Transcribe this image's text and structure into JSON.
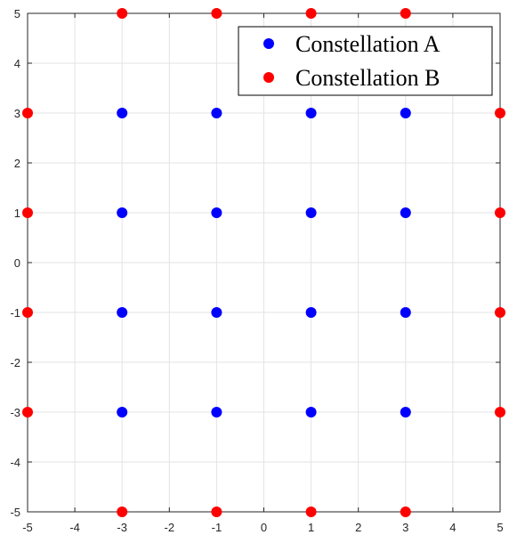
{
  "chart_data": {
    "type": "scatter",
    "title": "",
    "xlabel": "",
    "ylabel": "",
    "xlim": [
      -5,
      5
    ],
    "ylim": [
      -5,
      5
    ],
    "xticks": [
      -5,
      -4,
      -3,
      -2,
      -1,
      0,
      1,
      2,
      3,
      4,
      5
    ],
    "yticks": [
      -5,
      -4,
      -3,
      -2,
      -1,
      0,
      1,
      2,
      3,
      4,
      5
    ],
    "grid": true,
    "legend_position": "top-right",
    "series": [
      {
        "name": "Constellation A",
        "color": "#0000ff",
        "marker": "circle",
        "points": [
          [
            -3,
            3
          ],
          [
            -1,
            3
          ],
          [
            1,
            3
          ],
          [
            3,
            3
          ],
          [
            -3,
            1
          ],
          [
            -1,
            1
          ],
          [
            1,
            1
          ],
          [
            3,
            1
          ],
          [
            -3,
            -1
          ],
          [
            -1,
            -1
          ],
          [
            1,
            -1
          ],
          [
            3,
            -1
          ],
          [
            -3,
            -3
          ],
          [
            -1,
            -3
          ],
          [
            1,
            -3
          ],
          [
            3,
            -3
          ]
        ]
      },
      {
        "name": "Constellation B",
        "color": "#ff0000",
        "marker": "circle",
        "points": [
          [
            -3,
            5
          ],
          [
            -1,
            5
          ],
          [
            1,
            5
          ],
          [
            3,
            5
          ],
          [
            -5,
            3
          ],
          [
            5,
            3
          ],
          [
            -5,
            1
          ],
          [
            5,
            1
          ],
          [
            -5,
            -1
          ],
          [
            5,
            -1
          ],
          [
            -5,
            -3
          ],
          [
            5,
            -3
          ],
          [
            -3,
            -5
          ],
          [
            -1,
            -5
          ],
          [
            1,
            -5
          ],
          [
            3,
            -5
          ]
        ]
      }
    ]
  }
}
